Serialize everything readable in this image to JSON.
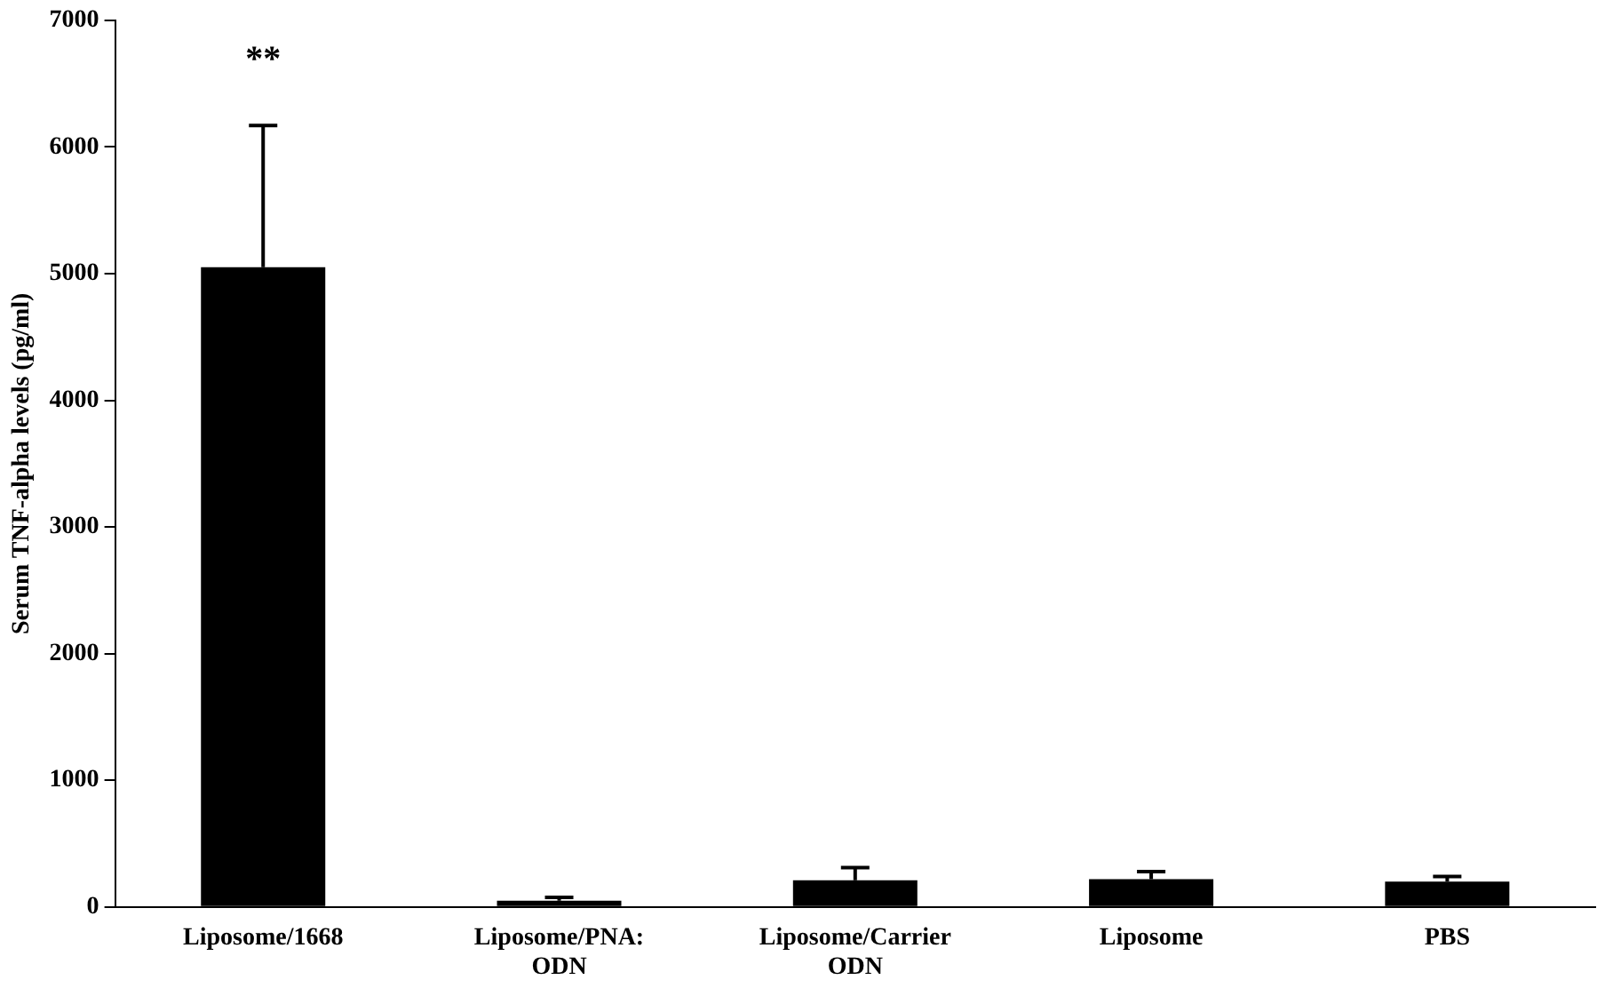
{
  "chart_data": {
    "type": "bar",
    "ylabel": "Serum TNF-alpha levels (pg/ml)",
    "categories": [
      "Liposome/1668",
      "Liposome/PNA: ODN",
      "Liposome/Carrier ODN",
      "Liposome",
      "PBS"
    ],
    "values": [
      5050,
      50,
      210,
      220,
      200
    ],
    "color": "#000000",
    "errors": [
      [
        5050,
        6170
      ],
      [
        50,
        75
      ],
      [
        210,
        310
      ],
      [
        220,
        280
      ],
      [
        200,
        240
      ]
    ],
    "ylim": [
      0,
      7000
    ],
    "yticks": [
      0,
      1000,
      2000,
      3000,
      4000,
      5000,
      6000,
      7000
    ],
    "grid": false,
    "legend": false,
    "annotations": [
      "**"
    ]
  }
}
